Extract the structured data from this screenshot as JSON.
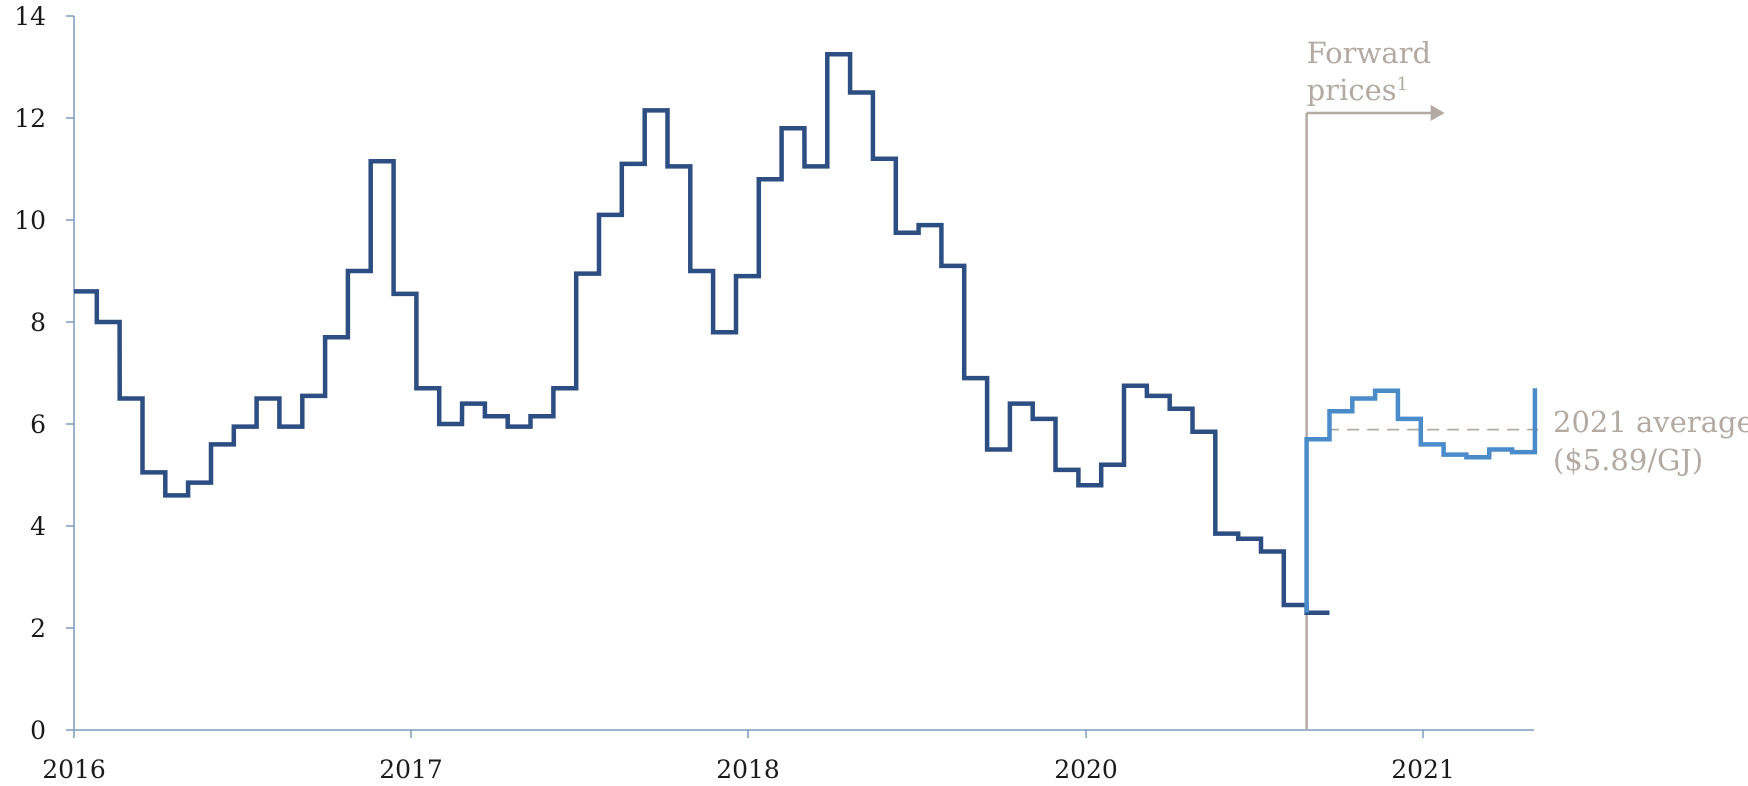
{
  "chart_data": {
    "type": "line",
    "step": true,
    "xlim": [
      2016,
      2021.33
    ],
    "ylim": [
      0,
      14
    ],
    "y_ticks": [
      0,
      2,
      4,
      6,
      8,
      10,
      12,
      14
    ],
    "x_tick_labels": [
      "2016",
      "2017",
      "2018",
      "2020",
      "2021"
    ],
    "grid": false,
    "colors": {
      "historical": "#2c4e83",
      "forward": "#4a8bc9",
      "axis": "#7c9bbd",
      "annotation": "#b3aba3"
    },
    "series": [
      {
        "x": [
          2016.0,
          2016.0833,
          2016.1667,
          2016.25,
          2016.3333,
          2016.4167,
          2016.5,
          2016.5833,
          2016.6667,
          2016.75,
          2016.8333,
          2016.9167,
          2017.0,
          2017.0833,
          2017.1667,
          2017.25,
          2017.3333,
          2017.4167,
          2017.5,
          2017.5833,
          2017.6667,
          2017.75,
          2017.8333,
          2017.9167,
          2018.0,
          2018.0833,
          2018.1667,
          2018.25,
          2018.3333,
          2018.4167,
          2018.5,
          2018.5833,
          2018.6667,
          2018.75,
          2018.8333,
          2018.9167,
          2019.0,
          2019.0833,
          2019.1667,
          2019.25,
          2019.3333,
          2019.4167,
          2019.5,
          2019.5833,
          2019.6667,
          2019.75,
          2019.8333,
          2019.9167,
          2020.0,
          2020.0833,
          2020.1667,
          2020.25,
          2020.3333,
          2020.4167,
          2020.5
        ],
        "values": [
          8.6,
          8.0,
          6.5,
          5.05,
          4.6,
          4.85,
          5.6,
          5.95,
          6.5,
          5.95,
          6.55,
          7.7,
          9.0,
          11.15,
          8.55,
          6.7,
          6.0,
          6.4,
          6.15,
          5.95,
          6.15,
          6.7,
          8.95,
          10.1,
          11.1,
          12.15,
          11.05,
          9.0,
          7.8,
          8.9,
          10.8,
          11.8,
          11.05,
          13.25,
          12.5,
          11.2,
          9.75,
          9.9,
          9.1,
          6.9,
          5.5,
          6.4,
          6.1,
          5.1,
          4.8,
          5.2,
          6.75,
          6.55,
          6.3,
          5.85,
          3.85,
          3.75,
          3.5,
          2.45,
          2.3
        ]
      },
      {
        "x": [
          2020.5,
          2020.5833,
          2020.6667,
          2020.75,
          2020.8333,
          2020.9167,
          2021.0,
          2021.0833,
          2021.1667,
          2021.25
        ],
        "values": [
          5.7,
          6.25,
          6.5,
          6.65,
          6.1,
          5.6,
          5.4,
          5.35,
          5.5,
          5.45
        ]
      }
    ],
    "annotations": {
      "forward_label_line1": "Forward",
      "forward_label_line2": "prices",
      "forward_superscript": "1",
      "average_label_line1": "2021 average",
      "average_label_line2": "($5.89/GJ)",
      "average_value": 5.89,
      "forward_start_x": 2020.5
    }
  }
}
